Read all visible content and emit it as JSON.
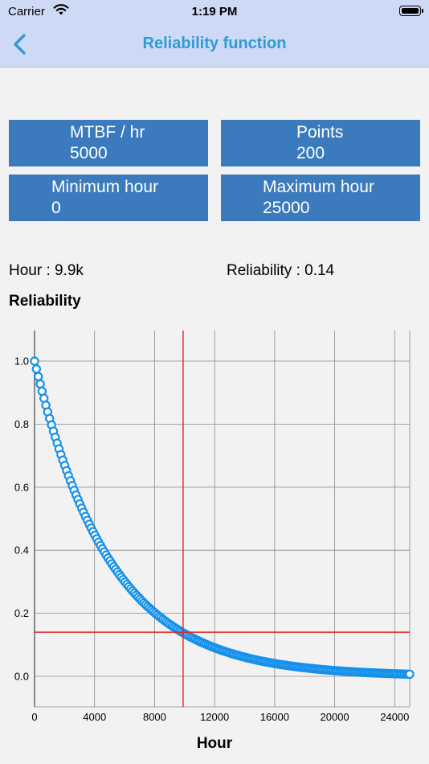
{
  "status": {
    "carrier": "Carrier",
    "time": "1:19 PM"
  },
  "nav": {
    "title": "Reliability function",
    "back_icon": "chevron-left-icon"
  },
  "params": {
    "mtbf": {
      "label": "MTBF / hr",
      "value": "5000"
    },
    "points": {
      "label": "Points",
      "value": "200"
    },
    "min_hour": {
      "label": "Minimum hour",
      "value": "0"
    },
    "max_hour": {
      "label": "Maximum hour",
      "value": "25000"
    }
  },
  "readout": {
    "hour": "Hour : 9.9k",
    "reliability": "Reliability : 0.14"
  },
  "colors": {
    "accent": "#2e9bd6",
    "param_bg": "#3b7bbd",
    "series": "#1591ec",
    "crosshair": "#e8201c",
    "header_bg": "#cdd9f5"
  },
  "chart_data": {
    "type": "scatter",
    "title": "Reliability",
    "xlabel": "Hour",
    "ylabel": "",
    "xlim": [
      0,
      25000
    ],
    "ylim": [
      0,
      1
    ],
    "xticks": [
      0,
      4000,
      8000,
      12000,
      16000,
      20000,
      24000
    ],
    "xtick_labels": [
      "0",
      "4000",
      "8000",
      "12000",
      "16000",
      "20000",
      "24000"
    ],
    "yticks": [
      0,
      0.2,
      0.4,
      0.6,
      0.8,
      1
    ],
    "ytick_labels": [
      "0.0",
      "0.2",
      "0.4",
      "0.6",
      "0.8",
      "1.0"
    ],
    "grid": true,
    "series": [
      {
        "function": "R(t) = exp(-t / MTBF)",
        "mtbf": 5000,
        "x_start": 0,
        "x_end": 25000,
        "point_count": 200
      }
    ],
    "crosshair": {
      "x": 9900,
      "y": 0.14
    }
  }
}
